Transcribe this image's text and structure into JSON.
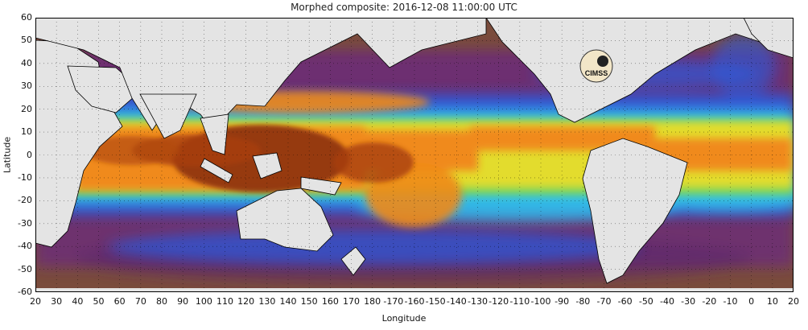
{
  "title": "Morphed composite: 2016-12-08 11:00:00 UTC",
  "x_axis_label": "Longitude",
  "y_axis_label": "Latitude",
  "x_ticks": [
    "20",
    "30",
    "40",
    "50",
    "60",
    "70",
    "80",
    "90",
    "100",
    "110",
    "120",
    "130",
    "140",
    "150",
    "160",
    "170",
    "180",
    "-170",
    "-160",
    "-150",
    "-140",
    "-130",
    "-120",
    "-110",
    "-100",
    "-90",
    "-80",
    "-70",
    "-60",
    "-50",
    "-40",
    "-30",
    "-20",
    "-10",
    "0",
    "10",
    "20"
  ],
  "y_ticks": [
    "60",
    "50",
    "40",
    "30",
    "20",
    "10",
    "0",
    "-10",
    "-20",
    "-30",
    "-40",
    "-50",
    "-60"
  ],
  "logo_text": "CIMSS",
  "colors": {
    "land": "#e4e4e4",
    "background_low": "#7a4c3c",
    "dry": "#6b2a7a",
    "moist_low": "#2f5ad8",
    "moist_mid": "#33c4e8",
    "moist_high": "#f08a1a",
    "moist_max": "#8c3008"
  }
}
